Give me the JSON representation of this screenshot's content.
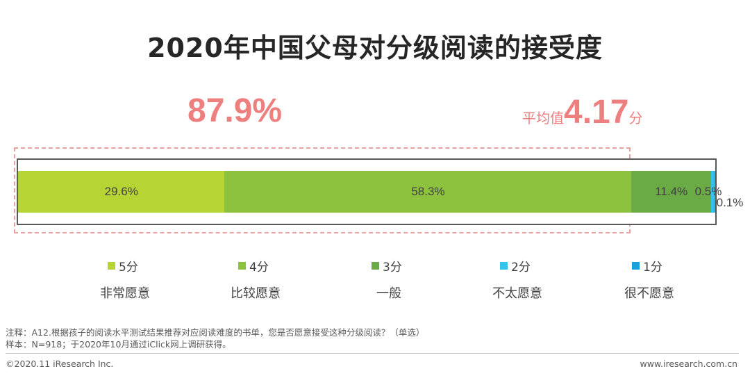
{
  "title": "2020年中国父母对分级阅读的接受度",
  "highlight_percent": "87.9%",
  "average": {
    "prefix": "平均值",
    "value": "4.17",
    "suffix": "分"
  },
  "chart_data": {
    "type": "bar",
    "stacked": true,
    "orientation": "horizontal",
    "title": "2020年中国父母对分级阅读的接受度",
    "unit": "%",
    "series": [
      {
        "name": "5分",
        "description": "非常愿意",
        "value": 29.6,
        "label": "29.6%",
        "color": "#b6d433"
      },
      {
        "name": "4分",
        "description": "比较愿意",
        "value": 58.3,
        "label": "58.3%",
        "color": "#8dc23f"
      },
      {
        "name": "3分",
        "description": "一般",
        "value": 11.4,
        "label": "11.4%",
        "color": "#6aab45"
      },
      {
        "name": "2分",
        "description": "不太愿意",
        "value": 0.5,
        "label": "0.5%",
        "color": "#33c3ec"
      },
      {
        "name": "1分",
        "description": "很不愿意",
        "value": 0.1,
        "label": "0.1%",
        "color": "#1aa0dc"
      }
    ],
    "legend_position": "bottom"
  },
  "footnote": {
    "note": "注释：A12.根据孩子的阅读水平测试结果推荐对应阅读难度的书单，您是否愿意接受这种分级阅读？（单选）",
    "sample": "样本：N=918；于2020年10月通过iClick网上调研获得。"
  },
  "copyright": "©2020.11 iResearch Inc.",
  "website": "www.iresearch.com.cn"
}
